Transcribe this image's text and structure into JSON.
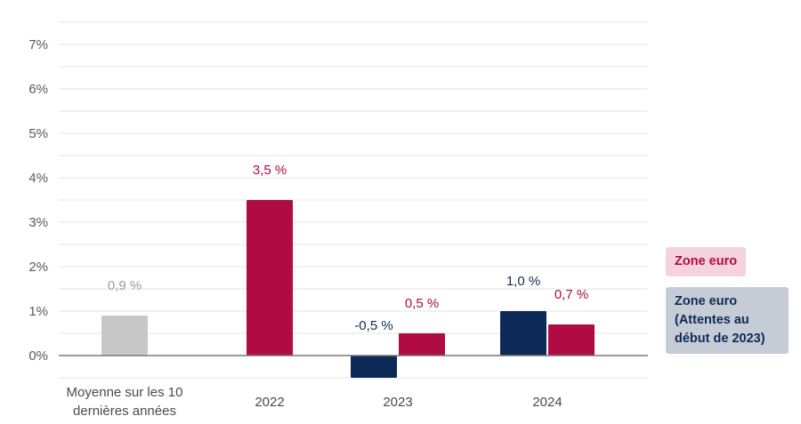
{
  "chart_data": {
    "type": "bar",
    "categories": [
      "Moyenne sur les 10\ndernières années",
      "2022",
      "2023",
      "2024"
    ],
    "series": [
      {
        "name": "Zone euro (Attentes au début de 2023)",
        "color": "#0d2a57",
        "values": [
          null,
          null,
          -0.5,
          1.0
        ],
        "labels": [
          null,
          null,
          "-0,5 %",
          "1,0 %"
        ]
      },
      {
        "name": "Zone euro",
        "color": "#b00b43",
        "values": [
          null,
          3.5,
          0.5,
          0.7
        ],
        "labels": [
          null,
          "3,5 %",
          "0,5 %",
          "0,7 %"
        ]
      },
      {
        "name": "Moyenne",
        "color": "#c8c8c8",
        "label_color": "#9a9a9a",
        "values": [
          0.9,
          null,
          null,
          null
        ],
        "labels": [
          "0,9 %",
          null,
          null,
          null
        ]
      }
    ],
    "y_ticks": [
      0,
      1,
      2,
      3,
      4,
      5,
      6,
      7
    ],
    "y_tick_labels": [
      "0%",
      "1%",
      "2%",
      "3%",
      "4%",
      "5%",
      "6%",
      "7%"
    ],
    "ylim": [
      -0.5,
      7.5
    ],
    "gridlines": true,
    "legend_position": "right",
    "legend": [
      "Zone euro",
      "Zone euro\n(Attentes au\ndébut de 2023)"
    ]
  }
}
